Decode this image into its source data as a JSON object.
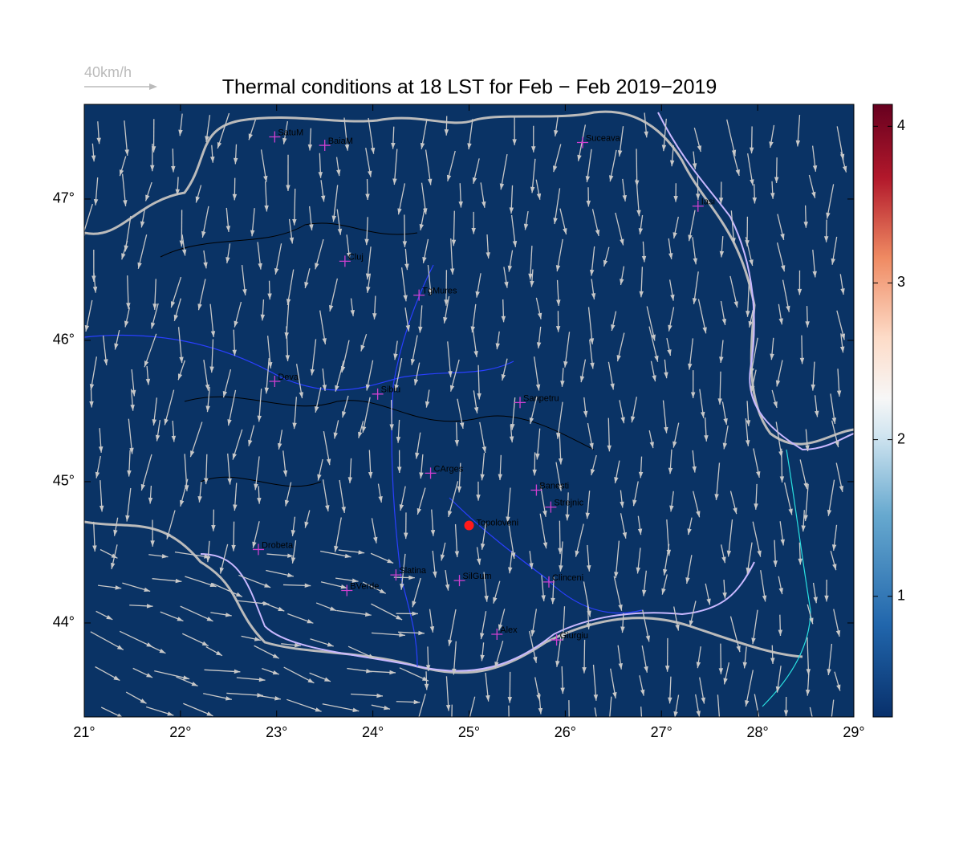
{
  "map": {
    "title": "Thermal conditions at 18 LST for Feb − Feb  2019−2019",
    "scale_label": "40km/h",
    "xlim": [
      21,
      29
    ],
    "ylim": [
      43.335,
      47.67
    ],
    "xticks": [
      {
        "value": 21,
        "label": "21°"
      },
      {
        "value": 22,
        "label": "22°"
      },
      {
        "value": 23,
        "label": "23°"
      },
      {
        "value": 24,
        "label": "24°"
      },
      {
        "value": 25,
        "label": "25°"
      },
      {
        "value": 26,
        "label": "26°"
      },
      {
        "value": 27,
        "label": "27°"
      },
      {
        "value": 28,
        "label": "28°"
      },
      {
        "value": 29,
        "label": "29°"
      }
    ],
    "yticks": [
      {
        "value": 44,
        "label": "44°"
      },
      {
        "value": 45,
        "label": "45°"
      },
      {
        "value": 46,
        "label": "46°"
      },
      {
        "value": 47,
        "label": "47°"
      }
    ],
    "colorbar": {
      "clim": [
        0.23,
        4.14
      ],
      "ticks": [
        1,
        2,
        3,
        4
      ]
    },
    "places": [
      {
        "name": "SatuM",
        "lon": 22.98,
        "lat": 47.44
      },
      {
        "name": "BaiaM",
        "lon": 23.5,
        "lat": 47.38
      },
      {
        "name": "Suceava",
        "lon": 26.18,
        "lat": 47.4
      },
      {
        "name": "Iasi",
        "lon": 27.38,
        "lat": 46.95
      },
      {
        "name": "Cluj",
        "lon": 23.71,
        "lat": 46.56
      },
      {
        "name": "TgMures",
        "lon": 24.48,
        "lat": 46.32
      },
      {
        "name": "Deva",
        "lon": 22.98,
        "lat": 45.71
      },
      {
        "name": "Sibiu",
        "lon": 24.05,
        "lat": 45.62
      },
      {
        "name": "Sanpetru",
        "lon": 25.53,
        "lat": 45.56
      },
      {
        "name": "CArges",
        "lon": 24.6,
        "lat": 45.06
      },
      {
        "name": "Banesti",
        "lon": 25.7,
        "lat": 44.94
      },
      {
        "name": "Strejnic",
        "lon": 25.85,
        "lat": 44.82
      },
      {
        "name": "Drobeta",
        "lon": 22.81,
        "lat": 44.52
      },
      {
        "name": "Slatina",
        "lon": 24.24,
        "lat": 44.34
      },
      {
        "name": "SilGum",
        "lon": 24.9,
        "lat": 44.3
      },
      {
        "name": "Clinceni",
        "lon": 25.83,
        "lat": 44.29
      },
      {
        "name": "BVerde",
        "lon": 23.73,
        "lat": 44.23
      },
      {
        "name": "Alex",
        "lon": 25.29,
        "lat": 43.92
      },
      {
        "name": "Giurgiu",
        "lon": 25.91,
        "lat": 43.88
      }
    ],
    "station": {
      "name": "Topoloveni",
      "lon": 25.0,
      "lat": 44.69
    }
  }
}
